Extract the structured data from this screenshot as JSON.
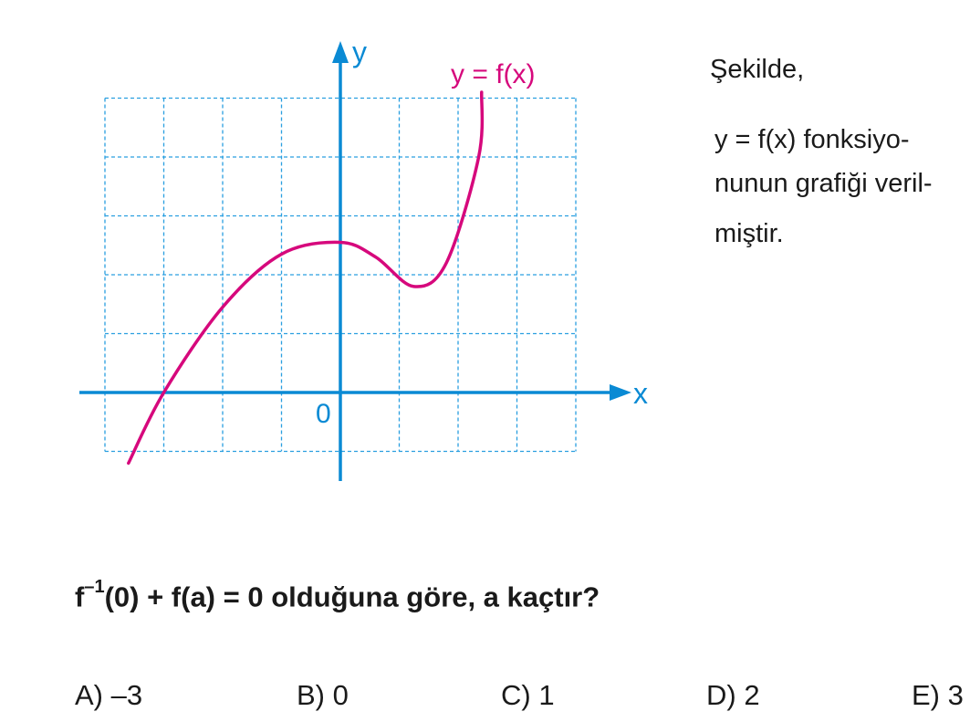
{
  "figure": {
    "curve_label": "y = f(x)",
    "x_axis_label": "x",
    "y_axis_label": "y",
    "origin_label": "0",
    "curve_color": "#d6087c",
    "axis_color": "#0a8ad4",
    "grid_color": "#2a9fe0"
  },
  "chart_data": {
    "type": "line",
    "x_range": [
      -4,
      4
    ],
    "y_range": [
      -1,
      5
    ],
    "grid": true,
    "grid_step": 1,
    "curve_points": [
      {
        "x": -3.6,
        "y": -1.2
      },
      {
        "x": -3,
        "y": 0
      },
      {
        "x": -2,
        "y": 1.45
      },
      {
        "x": -1,
        "y": 2.35
      },
      {
        "x": 0,
        "y": 2.55
      },
      {
        "x": 0.6,
        "y": 2.3
      },
      {
        "x": 1.25,
        "y": 1.8
      },
      {
        "x": 1.8,
        "y": 2.2
      },
      {
        "x": 2.35,
        "y": 4.0
      },
      {
        "x": 2.4,
        "y": 5.1
      }
    ]
  },
  "text": {
    "intro": "Şekilde,",
    "desc_line1": "y  =  f(x)  fonksiyo-",
    "desc_line2": "nunun grafiği veril-",
    "desc_line3": "miştir.",
    "question_f": "f",
    "question_sup": "–1",
    "question_rest": "(0)  +  f(a)  =  0   olduğuna göre,   a   kaçtır?"
  },
  "choices": [
    {
      "label": "A) –3"
    },
    {
      "label": "B) 0"
    },
    {
      "label": "C) 1"
    },
    {
      "label": "D) 2"
    },
    {
      "label": "E) 3"
    }
  ]
}
